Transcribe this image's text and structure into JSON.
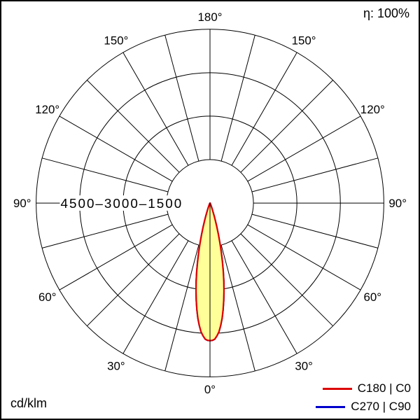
{
  "chart_data": {
    "type": "polar",
    "subtype": "luminous-intensity-distribution",
    "unit": "cd/klm",
    "efficiency_label": "η: 100%",
    "angle_step_deg": 15,
    "angle_labels": [
      "0°",
      "30°",
      "60°",
      "90°",
      "120°",
      "150°",
      "180°"
    ],
    "radial_rings": [
      1500,
      3000,
      4500,
      6000
    ],
    "radial_tick_labels": [
      "4500",
      "3000",
      "1500"
    ],
    "radial_axis_label": "4500–3000–1500",
    "grid": true,
    "legend_position": "bottom-right",
    "legend": [
      {
        "label": "C180 | C0",
        "color": "#dd0000"
      },
      {
        "label": "C270 | C90",
        "color": "#0000cc"
      }
    ],
    "series": [
      {
        "name": "C180 | C0",
        "color": "#dd0000",
        "fill": "#ffff99",
        "gamma_deg": [
          0,
          1,
          2,
          3,
          4,
          5,
          6,
          7,
          8,
          9,
          10,
          11,
          12,
          13,
          14,
          15,
          16,
          17,
          18,
          20,
          22,
          25,
          30
        ],
        "values_cd_per_klm": [
          4750,
          4740,
          4700,
          4590,
          4450,
          4240,
          4000,
          3710,
          3400,
          3080,
          2750,
          2400,
          2050,
          1720,
          1400,
          1110,
          850,
          630,
          450,
          220,
          100,
          30,
          0
        ]
      },
      {
        "name": "C270 | C90",
        "color": "#0000cc",
        "fill": "#ffff99",
        "gamma_deg": [
          0,
          1,
          2,
          3,
          4,
          5,
          6,
          7,
          8,
          9,
          10,
          11,
          12,
          13,
          14,
          15,
          16,
          17,
          18,
          20,
          22,
          25,
          30
        ],
        "values_cd_per_klm": [
          4750,
          4740,
          4700,
          4590,
          4450,
          4240,
          4000,
          3710,
          3400,
          3080,
          2750,
          2400,
          2050,
          1720,
          1400,
          1110,
          850,
          630,
          450,
          220,
          100,
          30,
          0
        ]
      }
    ],
    "max_value_cd_per_klm": 4750
  }
}
